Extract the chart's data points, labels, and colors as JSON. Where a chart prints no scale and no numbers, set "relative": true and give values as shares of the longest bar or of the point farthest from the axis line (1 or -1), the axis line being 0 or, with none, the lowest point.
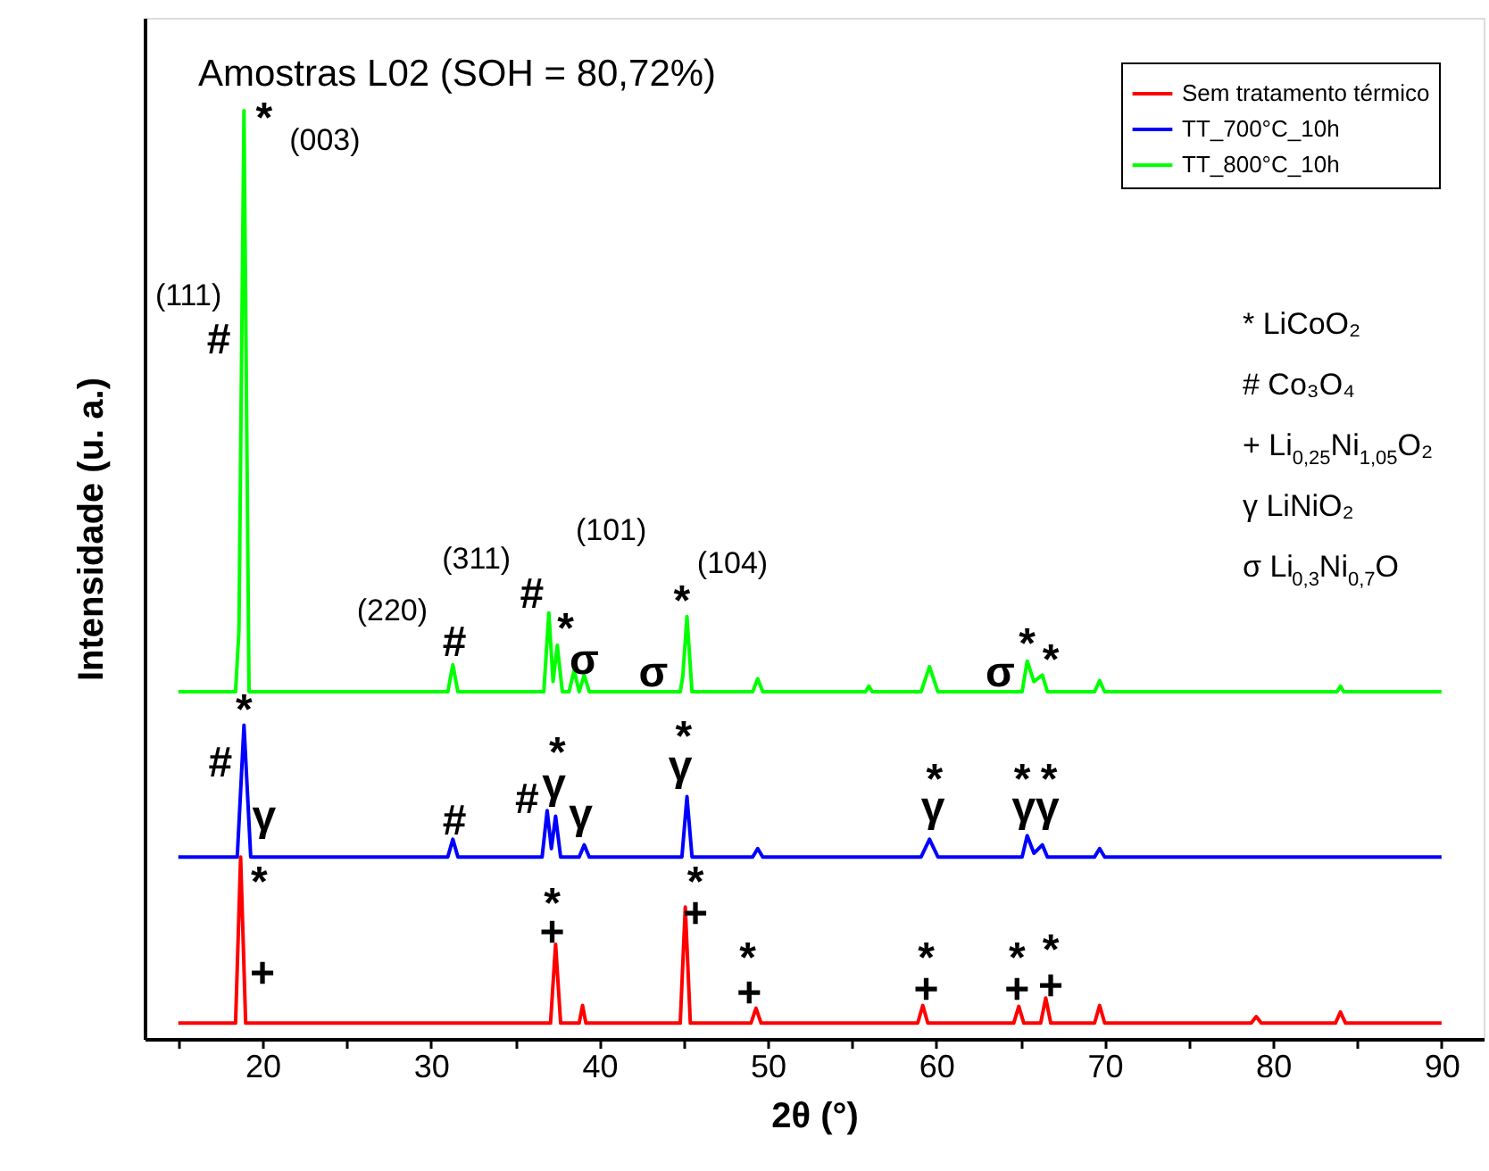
{
  "chart_data": {
    "type": "line",
    "relative": true,
    "title": "Amostras L02 (SOH = 80,72%)",
    "xlabel": "2θ (°)",
    "ylabel": "Intensidade (u. a.)",
    "xlim": [
      13,
      92.5
    ],
    "xticks": [
      {
        "value": 15,
        "label": null
      },
      20,
      {
        "value": 25,
        "label": null
      },
      30,
      {
        "value": 35,
        "label": null
      },
      40,
      {
        "value": 45,
        "label": null
      },
      50,
      {
        "value": 55,
        "label": null
      },
      60,
      {
        "value": 65,
        "label": null
      },
      70,
      {
        "value": 75,
        "label": null
      },
      80,
      {
        "value": 85,
        "label": null
      },
      90
    ],
    "grid": false,
    "legend": "top right",
    "line_style": "solid",
    "series": [
      {
        "name": "Sem tratamento térmico",
        "color": "#ff0000",
        "x": [
          15,
          18.4,
          18.7,
          19.0,
          37.1,
          37.4,
          37.7,
          38.8,
          39.0,
          39.2,
          44.8,
          45.1,
          45.4,
          49.0,
          49.3,
          49.6,
          58.9,
          59.2,
          59.5,
          64.6,
          64.9,
          65.2,
          66.2,
          66.5,
          66.8,
          69.4,
          69.7,
          70.0,
          78.7,
          79.0,
          79.3,
          83.7,
          84.0,
          84.3,
          90
        ],
        "values": [
          0.017,
          0.017,
          0.196,
          0.017,
          0.017,
          0.102,
          0.017,
          0.017,
          0.036,
          0.017,
          0.017,
          0.142,
          0.017,
          0.017,
          0.033,
          0.017,
          0.017,
          0.036,
          0.017,
          0.017,
          0.035,
          0.017,
          0.017,
          0.044,
          0.017,
          0.017,
          0.036,
          0.017,
          0.017,
          0.024,
          0.017,
          0.017,
          0.029,
          0.017,
          0.017
        ]
      },
      {
        "name": "TT_700°C_10h",
        "color": "#0000ff",
        "x": [
          15,
          18.5,
          18.9,
          19.3,
          31.0,
          31.3,
          31.6,
          36.6,
          36.9,
          37.15,
          37.4,
          37.7,
          38.8,
          39.1,
          39.4,
          44.9,
          45.2,
          45.5,
          49.1,
          49.4,
          49.7,
          59.1,
          59.6,
          60.1,
          65.1,
          65.4,
          65.8,
          66.3,
          66.6,
          69.4,
          69.7,
          70.0,
          90
        ],
        "values": [
          0.196,
          0.196,
          0.338,
          0.196,
          0.196,
          0.215,
          0.196,
          0.196,
          0.246,
          0.205,
          0.24,
          0.196,
          0.196,
          0.209,
          0.196,
          0.196,
          0.261,
          0.196,
          0.196,
          0.205,
          0.196,
          0.196,
          0.215,
          0.196,
          0.196,
          0.219,
          0.2,
          0.209,
          0.196,
          0.196,
          0.205,
          0.196,
          0.196
        ]
      },
      {
        "name": "TT_800°C_10h",
        "color": "#00ff00",
        "x": [
          15,
          18.4,
          18.6,
          18.9,
          19.2,
          31.0,
          31.3,
          31.6,
          36.7,
          37.0,
          37.25,
          37.5,
          37.8,
          38.2,
          38.5,
          38.8,
          39.1,
          39.4,
          44.8,
          44.95,
          45.2,
          45.5,
          49.1,
          49.4,
          49.7,
          55.8,
          56.0,
          56.2,
          59.1,
          59.6,
          60.1,
          65.1,
          65.4,
          65.8,
          66.3,
          66.6,
          69.4,
          69.7,
          70.0,
          83.8,
          84.0,
          84.2,
          90
        ],
        "values": [
          0.374,
          0.374,
          0.44,
          1.0,
          0.374,
          0.374,
          0.403,
          0.374,
          0.374,
          0.459,
          0.385,
          0.424,
          0.374,
          0.374,
          0.397,
          0.374,
          0.392,
          0.374,
          0.374,
          0.39,
          0.455,
          0.374,
          0.374,
          0.388,
          0.374,
          0.374,
          0.38,
          0.374,
          0.374,
          0.401,
          0.374,
          0.374,
          0.407,
          0.385,
          0.392,
          0.374,
          0.374,
          0.386,
          0.374,
          0.374,
          0.38,
          0.374,
          0.374
        ]
      }
    ],
    "annotations": [
      "* LiCoO₂",
      "# Co₃O₄",
      "+ Li$_{0,25}$Ni$_{1,05}$O₂",
      "γ LiNiO₂",
      "σ Li$_{0,3}$Ni$_{0,7}$O",
      "*",
      "(003)",
      "(111)",
      "#",
      "(220)",
      "#",
      "(311)",
      "#",
      "(101)",
      "*",
      "σ",
      "σ",
      "*",
      "(104)",
      "σ",
      "*",
      "*",
      "*",
      "#",
      "γ",
      "#",
      "#",
      "*",
      "γ",
      "γ",
      "*",
      "γ",
      "*",
      "γ",
      "*",
      "*",
      "γ",
      "γ",
      "*",
      "+",
      "*",
      "+",
      "*",
      "+",
      "*",
      "+",
      "*",
      "+",
      "*",
      "+",
      "*",
      "+"
    ]
  }
}
